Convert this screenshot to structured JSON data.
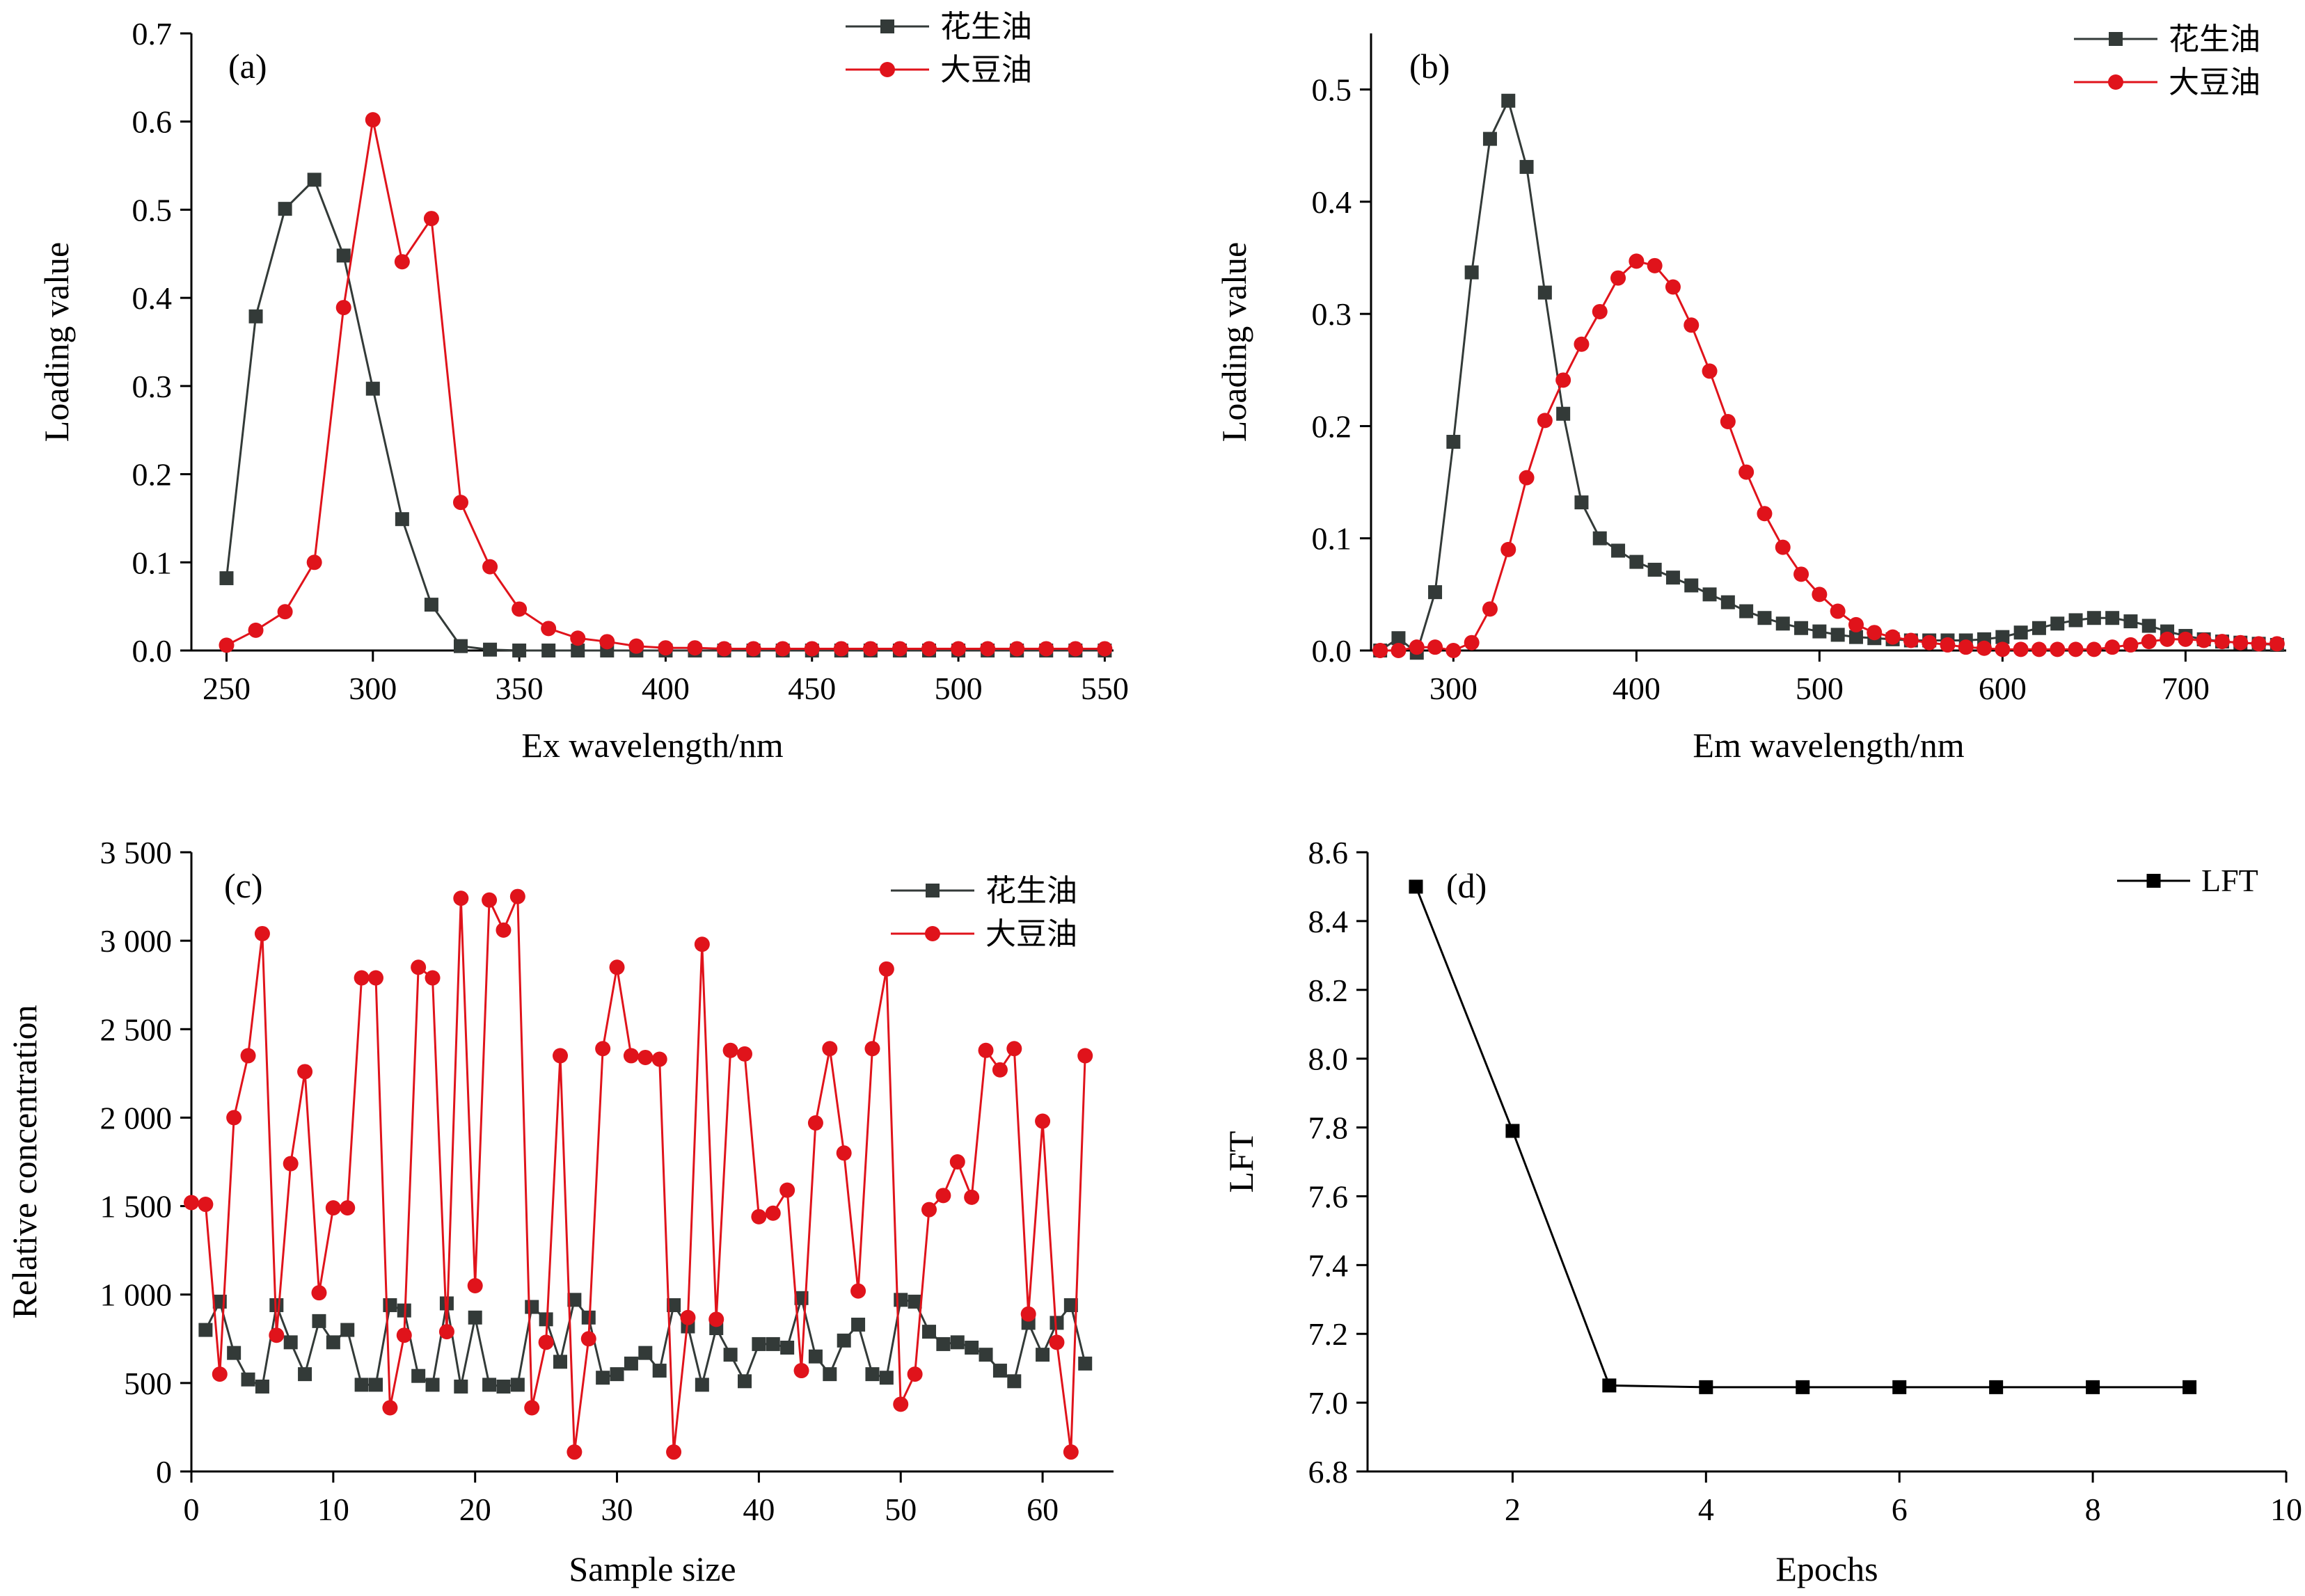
{
  "colors": {
    "peanut": "#333a38",
    "soy": "#e0131b",
    "lft": "#000000"
  },
  "chart_data": [
    {
      "id": "a",
      "type": "line",
      "panel_label": "(a)",
      "xlabel": "Ex wavelength/nm",
      "ylabel": "Loading value",
      "xlim": [
        238,
        553
      ],
      "ylim": [
        0,
        0.7
      ],
      "xticks": [
        250,
        300,
        350,
        400,
        450,
        500,
        550
      ],
      "yticks": [
        0.0,
        0.1,
        0.2,
        0.3,
        0.4,
        0.5,
        0.6,
        0.7
      ],
      "xtick_labels": [
        "250",
        "300",
        "350",
        "400",
        "450",
        "500",
        "550"
      ],
      "ytick_labels": [
        "0.0",
        "0.1",
        "0.2",
        "0.3",
        "0.4",
        "0.5",
        "0.6",
        "0.7"
      ],
      "legend_position": "top-center",
      "series": [
        {
          "name": "花生油",
          "color": "#333a38",
          "marker": "square",
          "x": [
            250,
            260,
            270,
            280,
            290,
            300,
            310,
            320,
            330,
            340,
            350,
            360,
            370,
            380,
            390,
            400,
            410,
            420,
            430,
            440,
            450,
            460,
            470,
            480,
            490,
            500,
            510,
            520,
            530,
            540,
            550
          ],
          "y": [
            0.082,
            0.379,
            0.501,
            0.534,
            0.448,
            0.297,
            0.149,
            0.052,
            0.005,
            0.001,
            0,
            0,
            0,
            0,
            0,
            0,
            0,
            0,
            0,
            0,
            0,
            0,
            0,
            0,
            0,
            0,
            0,
            0,
            0,
            0,
            0
          ]
        },
        {
          "name": "大豆油",
          "color": "#e0131b",
          "marker": "circle",
          "x": [
            250,
            260,
            270,
            280,
            290,
            300,
            310,
            320,
            330,
            340,
            350,
            360,
            370,
            380,
            390,
            400,
            410,
            420,
            430,
            440,
            450,
            460,
            470,
            480,
            490,
            500,
            510,
            520,
            530,
            540,
            550
          ],
          "y": [
            0.006,
            0.023,
            0.044,
            0.1,
            0.389,
            0.602,
            0.441,
            0.49,
            0.168,
            0.095,
            0.047,
            0.025,
            0.014,
            0.01,
            0.005,
            0.003,
            0.003,
            0.002,
            0.002,
            0.002,
            0.002,
            0.002,
            0.002,
            0.002,
            0.002,
            0.002,
            0.002,
            0.002,
            0.002,
            0.002,
            0.002
          ]
        }
      ]
    },
    {
      "id": "b",
      "type": "line",
      "panel_label": "(b)",
      "xlabel": "Em wavelength/nm",
      "ylabel": "Loading value",
      "xlim": [
        255,
        755
      ],
      "ylim": [
        0,
        0.55
      ],
      "xticks": [
        300,
        400,
        500,
        600,
        700
      ],
      "yticks": [
        0.0,
        0.1,
        0.2,
        0.3,
        0.4,
        0.5
      ],
      "xtick_labels": [
        "300",
        "400",
        "500",
        "600",
        "700"
      ],
      "ytick_labels": [
        "0.0",
        "0.1",
        "0.2",
        "0.3",
        "0.4",
        "0.5"
      ],
      "legend_position": "top-right",
      "series": [
        {
          "name": "花生油",
          "color": "#333a38",
          "marker": "square",
          "x": [
            260,
            270,
            280,
            290,
            300,
            310,
            320,
            330,
            340,
            350,
            360,
            370,
            380,
            390,
            400,
            410,
            420,
            430,
            440,
            450,
            460,
            470,
            480,
            490,
            500,
            510,
            520,
            530,
            540,
            550,
            560,
            570,
            580,
            590,
            600,
            610,
            620,
            630,
            640,
            650,
            660,
            670,
            680,
            690,
            700,
            710,
            720,
            730,
            740,
            750
          ],
          "y": [
            0.0,
            0.011,
            -0.002,
            0.052,
            0.186,
            0.337,
            0.456,
            0.49,
            0.431,
            0.319,
            0.211,
            0.132,
            0.1,
            0.089,
            0.079,
            0.072,
            0.065,
            0.058,
            0.05,
            0.043,
            0.035,
            0.029,
            0.024,
            0.02,
            0.017,
            0.014,
            0.012,
            0.011,
            0.01,
            0.009,
            0.009,
            0.009,
            0.009,
            0.01,
            0.012,
            0.016,
            0.02,
            0.024,
            0.027,
            0.029,
            0.029,
            0.026,
            0.022,
            0.017,
            0.013,
            0.01,
            0.008,
            0.007,
            0.006,
            0.005
          ]
        },
        {
          "name": "大豆油",
          "color": "#e0131b",
          "marker": "circle",
          "x": [
            260,
            270,
            280,
            290,
            300,
            310,
            320,
            330,
            340,
            350,
            360,
            370,
            380,
            390,
            400,
            410,
            420,
            430,
            440,
            450,
            460,
            470,
            480,
            490,
            500,
            510,
            520,
            530,
            540,
            550,
            560,
            570,
            580,
            590,
            600,
            610,
            620,
            630,
            640,
            650,
            660,
            670,
            680,
            690,
            700,
            710,
            720,
            730,
            740,
            750
          ],
          "y": [
            0.0,
            0.0,
            0.003,
            0.003,
            0.0,
            0.007,
            0.037,
            0.09,
            0.154,
            0.205,
            0.241,
            0.273,
            0.302,
            0.332,
            0.347,
            0.343,
            0.324,
            0.29,
            0.249,
            0.204,
            0.159,
            0.122,
            0.092,
            0.068,
            0.05,
            0.035,
            0.023,
            0.016,
            0.012,
            0.009,
            0.007,
            0.005,
            0.003,
            0.002,
            0.001,
            0.001,
            0.001,
            0.001,
            0.001,
            0.001,
            0.003,
            0.005,
            0.008,
            0.01,
            0.01,
            0.009,
            0.008,
            0.007,
            0.006,
            0.006
          ]
        }
      ]
    },
    {
      "id": "c",
      "type": "line",
      "panel_label": "(c)",
      "xlabel": "Sample size",
      "ylabel": "Relative concentration",
      "xlim": [
        0,
        65
      ],
      "ylim": [
        0,
        3500
      ],
      "xticks": [
        0,
        10,
        20,
        30,
        40,
        50,
        60
      ],
      "yticks": [
        0,
        500,
        1000,
        1500,
        2000,
        2500,
        3000,
        3500
      ],
      "xtick_labels": [
        "0",
        "10",
        "20",
        "30",
        "40",
        "50",
        "60"
      ],
      "ytick_labels": [
        "0",
        "500",
        "1 000",
        "1 500",
        "2 000",
        "2 500",
        "3 000",
        "3 500"
      ],
      "legend_position": "top-right",
      "series": [
        {
          "name": "花生油",
          "color": "#333a38",
          "marker": "square",
          "x": [
            1,
            2,
            3,
            4,
            5,
            6,
            7,
            8,
            9,
            10,
            11,
            12,
            13,
            14,
            15,
            16,
            17,
            18,
            19,
            20,
            21,
            22,
            23,
            24,
            25,
            26,
            27,
            28,
            29,
            30,
            31,
            32,
            33,
            34,
            35,
            36,
            37,
            38,
            39,
            40,
            41,
            42,
            43,
            44,
            45,
            46,
            47,
            48,
            49,
            50,
            51,
            52,
            53,
            54,
            55,
            56,
            57,
            58,
            59,
            60,
            61,
            62,
            63
          ],
          "y": [
            800,
            960,
            670,
            520,
            480,
            940,
            730,
            550,
            850,
            730,
            800,
            490,
            490,
            940,
            910,
            540,
            490,
            950,
            480,
            870,
            490,
            480,
            490,
            930,
            860,
            620,
            970,
            870,
            530,
            550,
            610,
            670,
            570,
            940,
            820,
            490,
            810,
            660,
            510,
            720,
            720,
            700,
            980,
            650,
            550,
            740,
            830,
            550,
            530,
            970,
            960,
            790,
            720,
            730,
            700,
            660,
            570,
            510,
            840,
            660,
            840,
            940,
            610
          ]
        },
        {
          "name": "大豆油",
          "color": "#e0131b",
          "marker": "circle",
          "x": [
            0,
            1,
            2,
            3,
            4,
            5,
            6,
            7,
            8,
            9,
            10,
            11,
            12,
            13,
            14,
            15,
            16,
            17,
            18,
            19,
            20,
            21,
            22,
            23,
            24,
            25,
            26,
            27,
            28,
            29,
            30,
            31,
            32,
            33,
            34,
            35,
            36,
            37,
            38,
            39,
            40,
            41,
            42,
            43,
            44,
            45,
            46,
            47,
            48,
            49,
            50,
            51,
            52,
            53,
            54,
            55,
            56,
            57,
            58,
            59,
            60,
            61,
            62,
            63
          ],
          "y": [
            1520,
            1510,
            550,
            2000,
            2350,
            3040,
            770,
            1740,
            2260,
            1010,
            1490,
            1490,
            2790,
            2790,
            360,
            770,
            2850,
            2790,
            790,
            3240,
            1050,
            3230,
            3060,
            3250,
            360,
            730,
            2350,
            110,
            750,
            2390,
            2850,
            2350,
            2340,
            2330,
            110,
            870,
            2980,
            860,
            2380,
            2360,
            1440,
            1460,
            1590,
            570,
            1970,
            2390,
            1800,
            1020,
            2390,
            2840,
            380,
            550,
            1480,
            1560,
            1750,
            1550,
            2380,
            2270,
            2390,
            890,
            1980,
            730,
            110,
            2350
          ]
        }
      ]
    },
    {
      "id": "d",
      "type": "line",
      "panel_label": "(d)",
      "xlabel": "Epochs",
      "ylabel": "LFT",
      "xlim": [
        0.5,
        10
      ],
      "ylim": [
        6.8,
        8.6
      ],
      "xticks": [
        2,
        4,
        6,
        8,
        10
      ],
      "yticks": [
        6.8,
        7.0,
        7.2,
        7.4,
        7.6,
        7.8,
        8.0,
        8.2,
        8.4,
        8.6
      ],
      "xtick_labels": [
        "2",
        "4",
        "6",
        "8",
        "10"
      ],
      "ytick_labels": [
        "6.8",
        "7.0",
        "7.2",
        "7.4",
        "7.6",
        "7.8",
        "8.0",
        "8.2",
        "8.4",
        "8.6"
      ],
      "legend_position": "top-right",
      "series": [
        {
          "name": "LFT",
          "color": "#000000",
          "marker": "square",
          "x": [
            1,
            2,
            3,
            4,
            5,
            6,
            7,
            8,
            9
          ],
          "y": [
            8.5,
            7.79,
            7.05,
            7.045,
            7.045,
            7.045,
            7.045,
            7.045,
            7.045
          ]
        }
      ]
    }
  ]
}
